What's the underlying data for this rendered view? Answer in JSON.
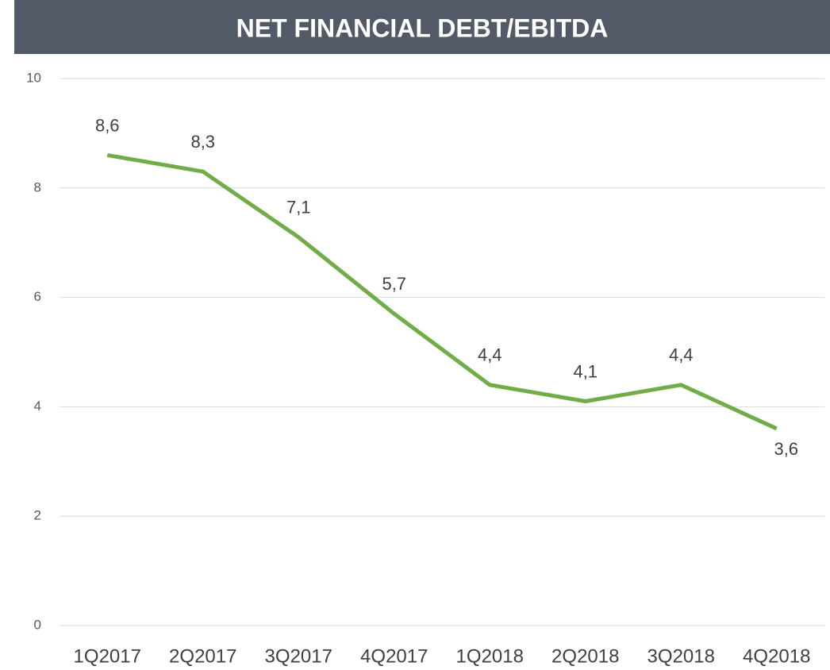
{
  "chart_data": {
    "type": "line",
    "title": "NET FINANCIAL DEBT/EBITDA",
    "categories": [
      "1Q2017",
      "2Q2017",
      "3Q2017",
      "4Q2017",
      "1Q2018",
      "2Q2018",
      "3Q2018",
      "4Q2018"
    ],
    "values": [
      8.6,
      8.3,
      7.1,
      5.7,
      4.4,
      4.1,
      4.4,
      3.6
    ],
    "value_labels": [
      "8,6",
      "8,3",
      "7,1",
      "5,7",
      "4,4",
      "4,1",
      "4,4",
      "3,6"
    ],
    "color": "#70ad47",
    "ylim": [
      0,
      10
    ],
    "yticks": [
      0,
      2,
      4,
      6,
      8,
      10
    ],
    "grid": true
  }
}
